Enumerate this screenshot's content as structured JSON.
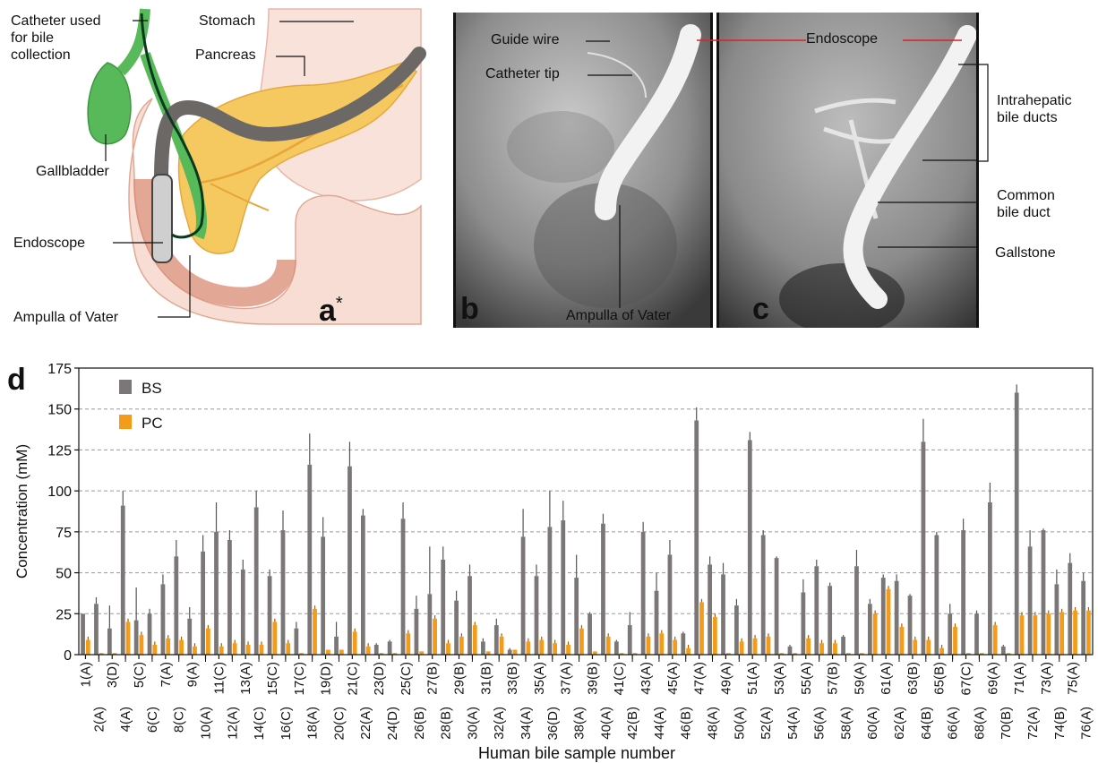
{
  "panel_a": {
    "letter": "a",
    "asterisk": "*",
    "labels": {
      "catheter_line1": "Catheter used",
      "catheter_line2": "for bile",
      "catheter_line3": "collection",
      "stomach": "Stomach",
      "pancreas": "Pancreas",
      "gallbladder": "Gallbladder",
      "endoscope": "Endoscope",
      "ampulla": "Ampulla of Vater"
    },
    "colors": {
      "gallbladder": "#5cb85c",
      "pancreas": "#f6c55a",
      "stomach": "#f7dcd2",
      "duodenum": "#d99078",
      "endoscope": "#6d6a68"
    }
  },
  "panel_b": {
    "letter": "b",
    "labels": {
      "guide_wire": "Guide wire",
      "catheter_tip": "Catheter tip",
      "ampulla": "Ampulla of Vater"
    }
  },
  "panel_c": {
    "letter": "c",
    "labels": {
      "endoscope": "Endoscope",
      "intrahepatic_1": "Intrahepatic",
      "intrahepatic_2": "bile ducts",
      "common_1": "Common",
      "common_2": "bile duct",
      "gallstone": "Gallstone"
    }
  },
  "chart_data": {
    "panel_letter": "d",
    "type": "bar",
    "xlabel": "Human bile sample number",
    "ylabel": "Concentration (mM)",
    "ylim": [
      0,
      175
    ],
    "yticks": [
      0,
      25,
      50,
      75,
      100,
      125,
      150,
      175
    ],
    "grid": "horizontal dashed",
    "legend_position": "top-left",
    "colors": {
      "BS": "#7b7777",
      "PC": "#f49c1a"
    },
    "categories": [
      "1(A)",
      "2(A)",
      "3(D)",
      "4(A)",
      "5(C)",
      "6(C)",
      "7(A)",
      "8(C)",
      "9(A)",
      "10(A)",
      "11(C)",
      "12(A)",
      "13(A)",
      "14(C)",
      "15(C)",
      "16(C)",
      "17(C)",
      "18(A)",
      "19(D)",
      "20(C)",
      "21(C)",
      "22(A)",
      "23(D)",
      "24(D)",
      "25(C)",
      "26(B)",
      "27(B)",
      "28(B)",
      "29(B)",
      "30(A)",
      "31(B)",
      "32(A)",
      "33(B)",
      "34(A)",
      "35(A)",
      "36(D)",
      "37(A)",
      "38(A)",
      "39(B)",
      "40(A)",
      "41(C)",
      "42(B)",
      "43(A)",
      "44(A)",
      "45(A)",
      "46(B)",
      "47(A)",
      "48(A)",
      "49(A)",
      "50(A)",
      "51(A)",
      "52(A)",
      "53(A)",
      "54(A)",
      "55(A)",
      "56(A)",
      "57(B)",
      "58(A)",
      "59(A)",
      "60(A)",
      "61(A)",
      "62(A)",
      "63(B)",
      "64(B)",
      "65(B)",
      "66(A)",
      "67(C)",
      "68(A)",
      "69(A)",
      "70(B)",
      "71(A)",
      "72(A)",
      "73(A)",
      "74(B)",
      "75(A)",
      "76(A)"
    ],
    "series": [
      {
        "name": "BS",
        "values": [
          25,
          31,
          16,
          91,
          21,
          25,
          43,
          60,
          22,
          63,
          75,
          70,
          52,
          90,
          48,
          76,
          16,
          116,
          72,
          11,
          115,
          85,
          6,
          8,
          83,
          28,
          37,
          58,
          33,
          48,
          8,
          18,
          3,
          72,
          48,
          78,
          82,
          47,
          25,
          80,
          8,
          18,
          75,
          39,
          61,
          13,
          143,
          55,
          49,
          30,
          131,
          73,
          59,
          5,
          38,
          54,
          42,
          11,
          54,
          31,
          47,
          45,
          36,
          130,
          73,
          25,
          76,
          25,
          93,
          5,
          160,
          66,
          76,
          43,
          56,
          45
        ],
        "errors": [
          0,
          4,
          14,
          9,
          20,
          3,
          6,
          10,
          7,
          10,
          18,
          6,
          6,
          10,
          4,
          12,
          4,
          19,
          12,
          9,
          15,
          4,
          1,
          1,
          10,
          8,
          29,
          8,
          6,
          7,
          2,
          4,
          1,
          17,
          7,
          22,
          12,
          14,
          1,
          6,
          1,
          8,
          6,
          11,
          9,
          1,
          8,
          5,
          7,
          4,
          5,
          3,
          1,
          1,
          8,
          4,
          2,
          1,
          10,
          3,
          2,
          4,
          1,
          14,
          2,
          6,
          7,
          2,
          12,
          1,
          5,
          10,
          1,
          9,
          6,
          5
        ]
      },
      {
        "name": "PC",
        "values": [
          9,
          1,
          1,
          20,
          12,
          6,
          10,
          9,
          5,
          16,
          5,
          7,
          6,
          6,
          20,
          7,
          1,
          28,
          3,
          3,
          14,
          5,
          1,
          1,
          13,
          2,
          22,
          7,
          11,
          18,
          2,
          11,
          3,
          8,
          9,
          7,
          6,
          16,
          2,
          11,
          1,
          1,
          11,
          13,
          9,
          4,
          32,
          23,
          1,
          8,
          10,
          11,
          1,
          1,
          10,
          7,
          7,
          1,
          1,
          25,
          40,
          17,
          9,
          9,
          4,
          17,
          1,
          1,
          18,
          1,
          24,
          24,
          25,
          26,
          27,
          27
        ]
      }
    ],
    "legend": [
      "BS",
      "PC"
    ]
  }
}
